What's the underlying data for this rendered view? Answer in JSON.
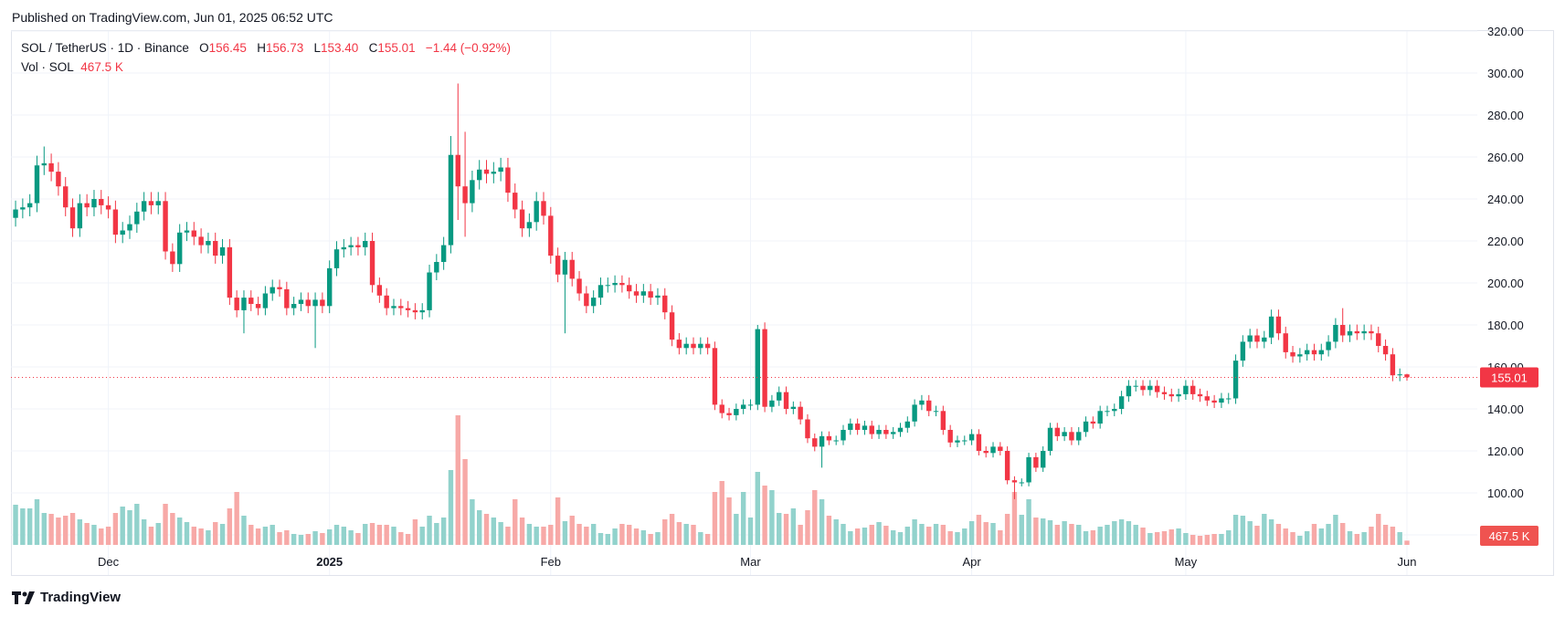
{
  "published": "Published on TradingView.com, Jun 01, 2025 06:52 UTC",
  "legend": {
    "symbol": "SOL / TetherUS · 1D · Binance",
    "o_label": "O",
    "o": "156.45",
    "h_label": "H",
    "h": "156.73",
    "l_label": "L",
    "l": "153.40",
    "c_label": "C",
    "c": "155.01",
    "change": "−1.44 (−0.92%)",
    "vol_label": "Vol · SOL",
    "vol": "467.5 K"
  },
  "price_label": "155.01",
  "volume_label": "467.5 K",
  "footer": {
    "brand": "TradingView"
  },
  "colors": {
    "up": "#089981",
    "down": "#f23645",
    "up_volume": "#92d2cc",
    "down_volume": "#f7a9a7",
    "grid": "#f0f3fa"
  },
  "chart_data": {
    "type": "candlestick",
    "title": "SOL / TetherUS · 1D · Binance",
    "y_ticks": [
      "320.00",
      "300.00",
      "280.00",
      "260.00",
      "240.00",
      "220.00",
      "200.00",
      "180.00",
      "160.00",
      "140.00",
      "120.00",
      "100.00"
    ],
    "ylim": [
      100,
      320
    ],
    "x_ticks": [
      {
        "label": "Dec",
        "date": "2024-12-01"
      },
      {
        "label": "2025",
        "date": "2025-01-01"
      },
      {
        "label": "Feb",
        "date": "2025-02-01"
      },
      {
        "label": "Mar",
        "date": "2025-03-01"
      },
      {
        "label": "Apr",
        "date": "2025-04-01"
      },
      {
        "label": "May",
        "date": "2025-05-01"
      },
      {
        "label": "Jun",
        "date": "2025-06-01"
      }
    ],
    "grid": true,
    "last_candle": {
      "open": 156.45,
      "high": 156.73,
      "low": 153.4,
      "close": 155.01
    },
    "first_open": 231,
    "volume_unit": "M SOL",
    "months": [
      {
        "month": "2024-11",
        "first_day": 18,
        "close": [
          235,
          236,
          238,
          256,
          257,
          253,
          246,
          236,
          226,
          238,
          236,
          240,
          237
        ],
        "volume": [
          4.4,
          4.0,
          4.0,
          5.0,
          3.5,
          3.4,
          3.0,
          3.2,
          3.5,
          2.8,
          2.4,
          2.2,
          1.8
        ]
      },
      {
        "month": "2024-12",
        "first_day": 1,
        "close": [
          235,
          223,
          225,
          228,
          234,
          239,
          237,
          239,
          215,
          209,
          224,
          225,
          222,
          218,
          220,
          213,
          217,
          193,
          187,
          193,
          190,
          188,
          195,
          198,
          197,
          188,
          190,
          192,
          189,
          192,
          189
        ],
        "volume": [
          2.0,
          3.5,
          4.2,
          3.8,
          4.5,
          2.8,
          2.0,
          2.4,
          4.5,
          3.5,
          3.0,
          2.5,
          2.0,
          1.8,
          1.6,
          2.5,
          2.3,
          4.0,
          5.8,
          3.2,
          2.2,
          1.8,
          2.0,
          2.2,
          1.4,
          1.6,
          1.2,
          1.1,
          1.2,
          1.5,
          1.3
        ]
      },
      {
        "month": "2025-01",
        "first_day": 1,
        "close": [
          207,
          216,
          217,
          218,
          217,
          220,
          199,
          194,
          188,
          189,
          188,
          187,
          186,
          187,
          205,
          210,
          218,
          261,
          246,
          238,
          249,
          254,
          252,
          253,
          255,
          243,
          235,
          226,
          229,
          239,
          232
        ],
        "volume": [
          1.7,
          2.2,
          2.0,
          1.6,
          1.3,
          2.3,
          2.4,
          2.2,
          2.2,
          2.0,
          1.4,
          1.2,
          2.8,
          2.0,
          3.2,
          2.4,
          3.0,
          8.2,
          14.2,
          9.4,
          5.0,
          3.8,
          3.4,
          3.0,
          2.5,
          2.0,
          5.0,
          3.0,
          2.3,
          2.0,
          2.0
        ]
      },
      {
        "month": "2025-02",
        "first_day": 1,
        "close": [
          213,
          204,
          211,
          202,
          195,
          189,
          193,
          199,
          199,
          200,
          199,
          196,
          194,
          196,
          193,
          194,
          186,
          173,
          169,
          171,
          169,
          171,
          169,
          142,
          138,
          137,
          140,
          142
        ],
        "volume": [
          2.2,
          5.2,
          2.6,
          3.2,
          2.3,
          2.0,
          2.3,
          1.3,
          1.2,
          1.8,
          2.3,
          2.2,
          1.8,
          1.6,
          1.2,
          1.4,
          2.8,
          3.4,
          2.5,
          2.3,
          2.2,
          1.4,
          1.2,
          5.8,
          7.0,
          5.2,
          3.4,
          5.8
        ]
      },
      {
        "month": "2025-03",
        "first_day": 1,
        "close": [
          142,
          178,
          141,
          144,
          148,
          140,
          141,
          135,
          126,
          122,
          127,
          125,
          125,
          130,
          133,
          130,
          132,
          128,
          130,
          128,
          129,
          131,
          134,
          142,
          144,
          139,
          139,
          130,
          124,
          125,
          125
        ],
        "volume": [
          3.0,
          8.0,
          6.5,
          6.0,
          3.5,
          3.4,
          4.0,
          2.2,
          3.8,
          6.0,
          5.0,
          3.2,
          2.8,
          2.3,
          1.5,
          1.8,
          1.9,
          2.2,
          2.5,
          2.1,
          1.6,
          1.4,
          2.0,
          2.8,
          2.3,
          2.0,
          2.3,
          2.2,
          1.5,
          1.4,
          1.8
        ]
      },
      {
        "month": "2025-04",
        "first_day": 1,
        "close": [
          128,
          120,
          119,
          122,
          120,
          106,
          105,
          105,
          117,
          112,
          120,
          131,
          127,
          129,
          125,
          129,
          134,
          133,
          139,
          139,
          140,
          146,
          151,
          151,
          149,
          151,
          148,
          147,
          146,
          147
        ],
        "volume": [
          2.6,
          3.3,
          2.5,
          2.4,
          1.6,
          3.4,
          5.8,
          3.3,
          5.0,
          3.0,
          2.9,
          2.7,
          2.2,
          2.6,
          2.3,
          2.2,
          1.5,
          1.6,
          2.0,
          2.2,
          2.6,
          2.8,
          2.6,
          2.2,
          1.9,
          1.3,
          1.4,
          1.5,
          1.7,
          1.8
        ]
      },
      {
        "month": "2025-05",
        "first_day": 1,
        "close": [
          151,
          147,
          146,
          144,
          143,
          145,
          145,
          163,
          172,
          175,
          172,
          174,
          184,
          176,
          167,
          165,
          166,
          168,
          166,
          168,
          172,
          180,
          175,
          177,
          176,
          177,
          176,
          170,
          166,
          156,
          156.45
        ],
        "volume": [
          1.3,
          1.1,
          1.0,
          1.1,
          1.2,
          1.2,
          1.6,
          3.3,
          3.2,
          2.6,
          2.1,
          3.4,
          2.8,
          2.3,
          1.8,
          1.4,
          1.0,
          1.5,
          2.3,
          1.8,
          2.3,
          3.3,
          2.4,
          1.5,
          1.2,
          1.4,
          2.0,
          3.4,
          2.2,
          2.0,
          1.4
        ]
      },
      {
        "month": "2025-06",
        "first_day": 1,
        "close": [
          155.01
        ],
        "volume": [
          0.4675
        ]
      }
    ],
    "wick_extremes": [
      {
        "date": "2024-11-22",
        "high": 265
      },
      {
        "date": "2024-12-20",
        "low": 176
      },
      {
        "date": "2024-12-30",
        "low": 169
      },
      {
        "date": "2025-01-18",
        "high": 270
      },
      {
        "date": "2025-01-19",
        "high": 295,
        "low": 230
      },
      {
        "date": "2025-01-20",
        "high": 272,
        "low": 222
      },
      {
        "date": "2025-02-03",
        "low": 176
      },
      {
        "date": "2025-03-02",
        "high": 180
      },
      {
        "date": "2025-03-11",
        "low": 112
      },
      {
        "date": "2025-04-07",
        "low": 97
      },
      {
        "date": "2025-05-23",
        "high": 188
      }
    ]
  }
}
